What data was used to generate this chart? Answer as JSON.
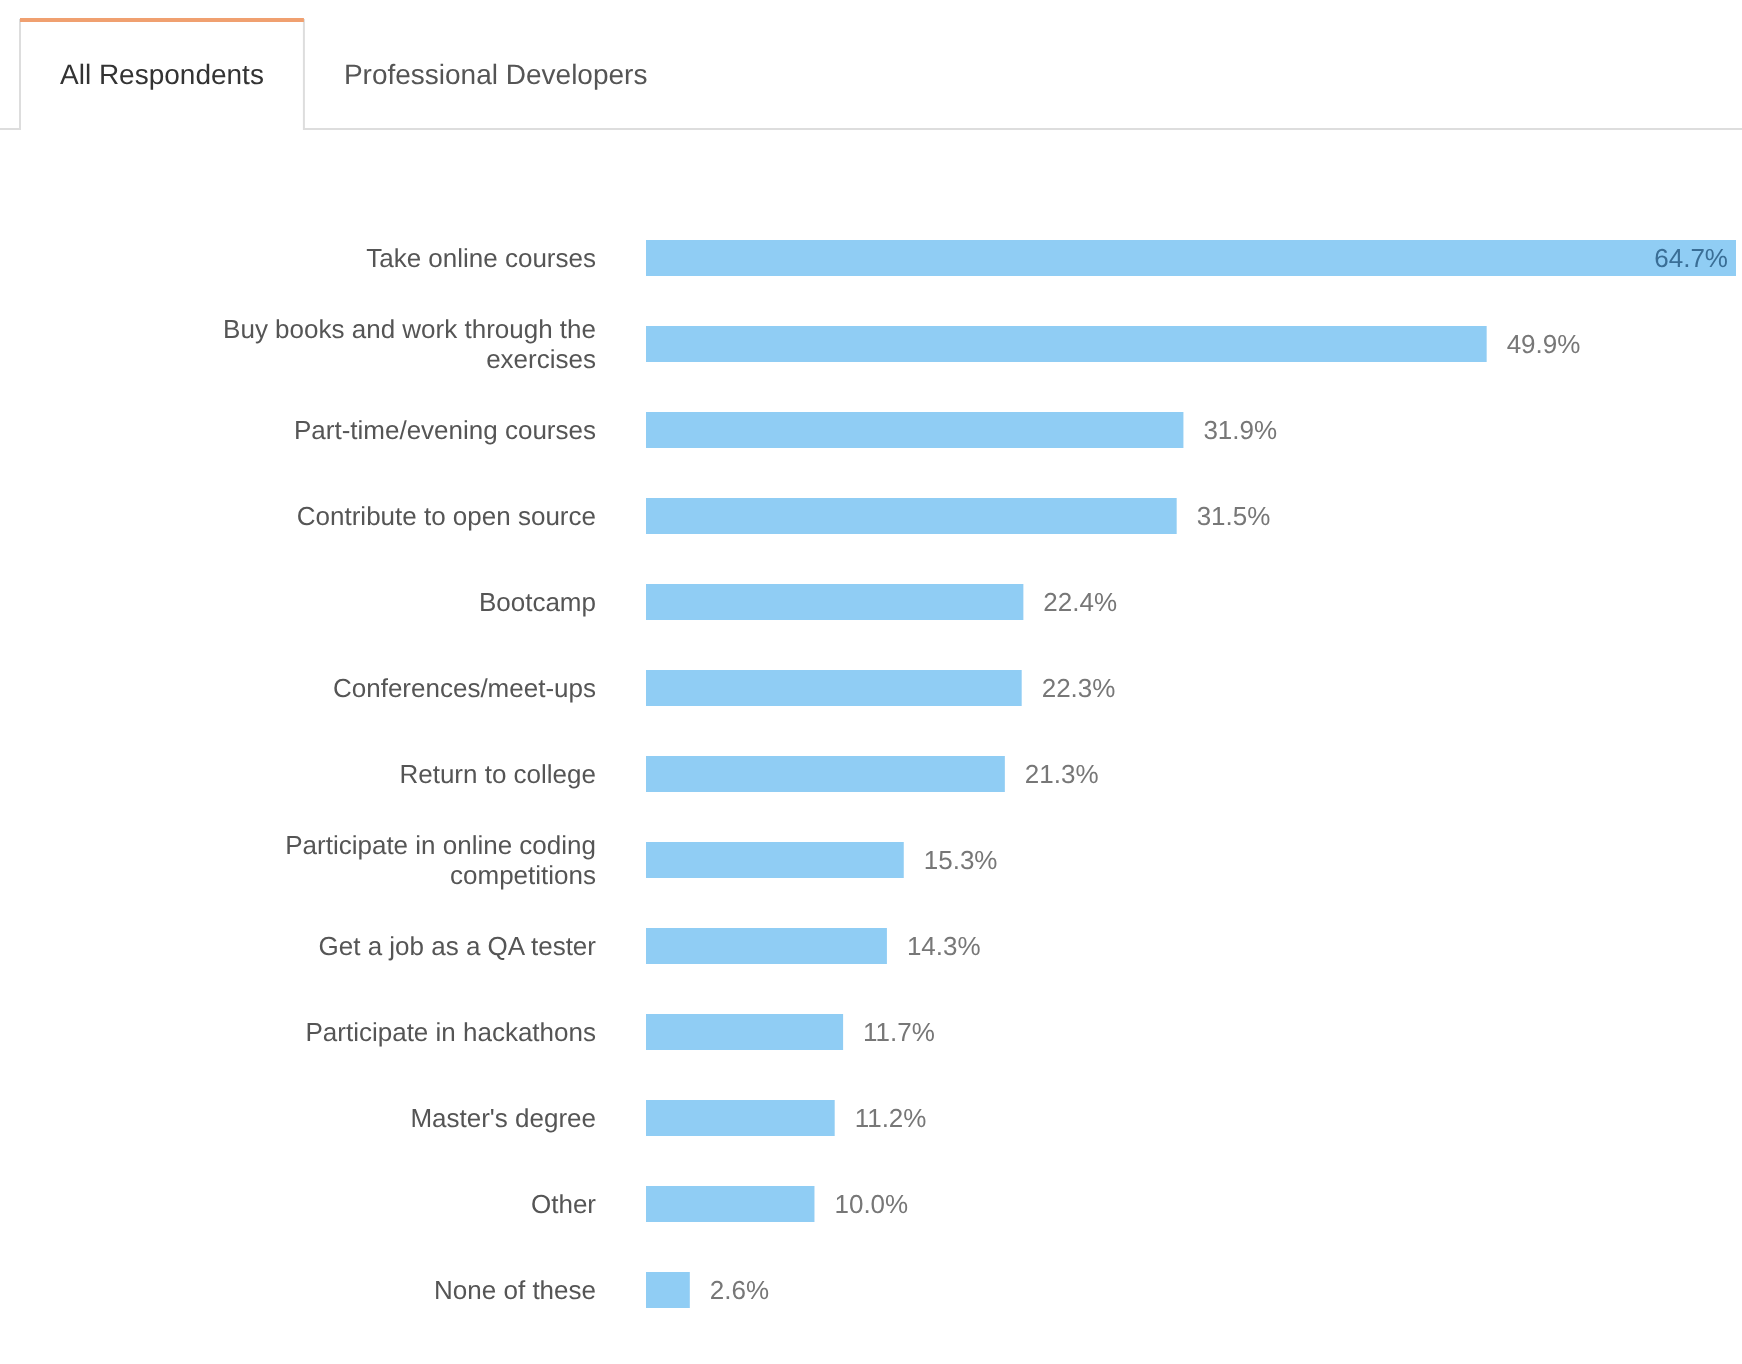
{
  "chart_data": {
    "type": "bar",
    "orientation": "horizontal",
    "value_labels": [
      "64.7%",
      "49.9%",
      "31.9%",
      "31.5%",
      "22.4%",
      "22.3%",
      "21.3%",
      "15.3%",
      "14.3%",
      "11.7%",
      "11.2%",
      "10.0%",
      "2.6%"
    ],
    "categories": [
      "Take online courses",
      "Buy books and work through the exercises",
      "Part-time/evening courses",
      "Contribute to open source",
      "Bootcamp",
      "Conferences/meet-ups",
      "Return to college",
      "Participate in online coding competitions",
      "Get a job as a QA tester",
      "Participate in hackathons",
      "Master's degree",
      "Other",
      "None of these"
    ],
    "values": [
      64.7,
      49.9,
      31.9,
      31.5,
      22.4,
      22.3,
      21.3,
      15.3,
      14.3,
      11.7,
      11.2,
      10.0,
      2.6
    ],
    "color": "#90cdf4",
    "annotations": [
      "All Respondents",
      "Professional Developers"
    ]
  }
}
